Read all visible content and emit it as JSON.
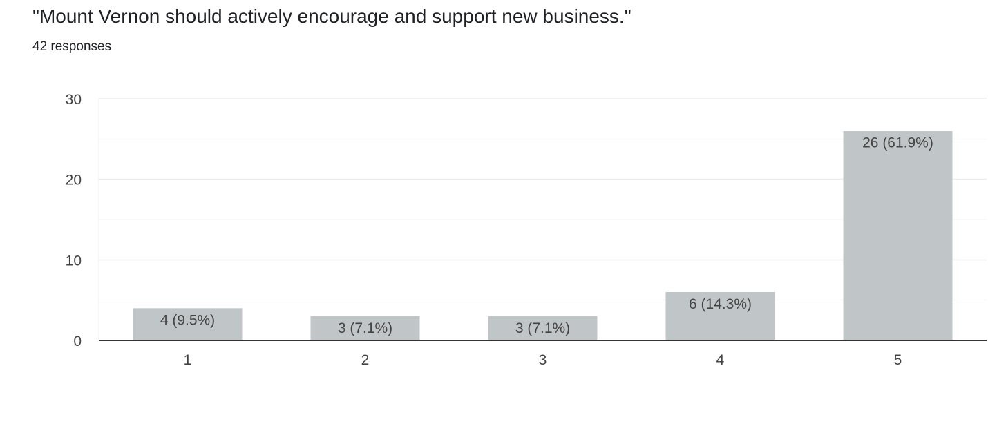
{
  "question": {
    "title": "\"Mount Vernon should actively encourage and support new business.\"",
    "responses_label": "42 responses"
  },
  "colors": {
    "bar": "#c0c5c8",
    "grid": "#ebebeb",
    "axis": "#333333",
    "text": "#444444"
  },
  "chart_data": {
    "type": "bar",
    "categories": [
      "1",
      "2",
      "3",
      "4",
      "5"
    ],
    "values": [
      4,
      3,
      3,
      6,
      26
    ],
    "data_labels": [
      "4 (9.5%)",
      "3 (7.1%)",
      "3 (7.1%)",
      "6 (14.3%)",
      "26 (61.9%)"
    ],
    "y_ticks": [
      0,
      10,
      20,
      30
    ],
    "ylim": [
      0,
      30
    ],
    "grid": true
  }
}
